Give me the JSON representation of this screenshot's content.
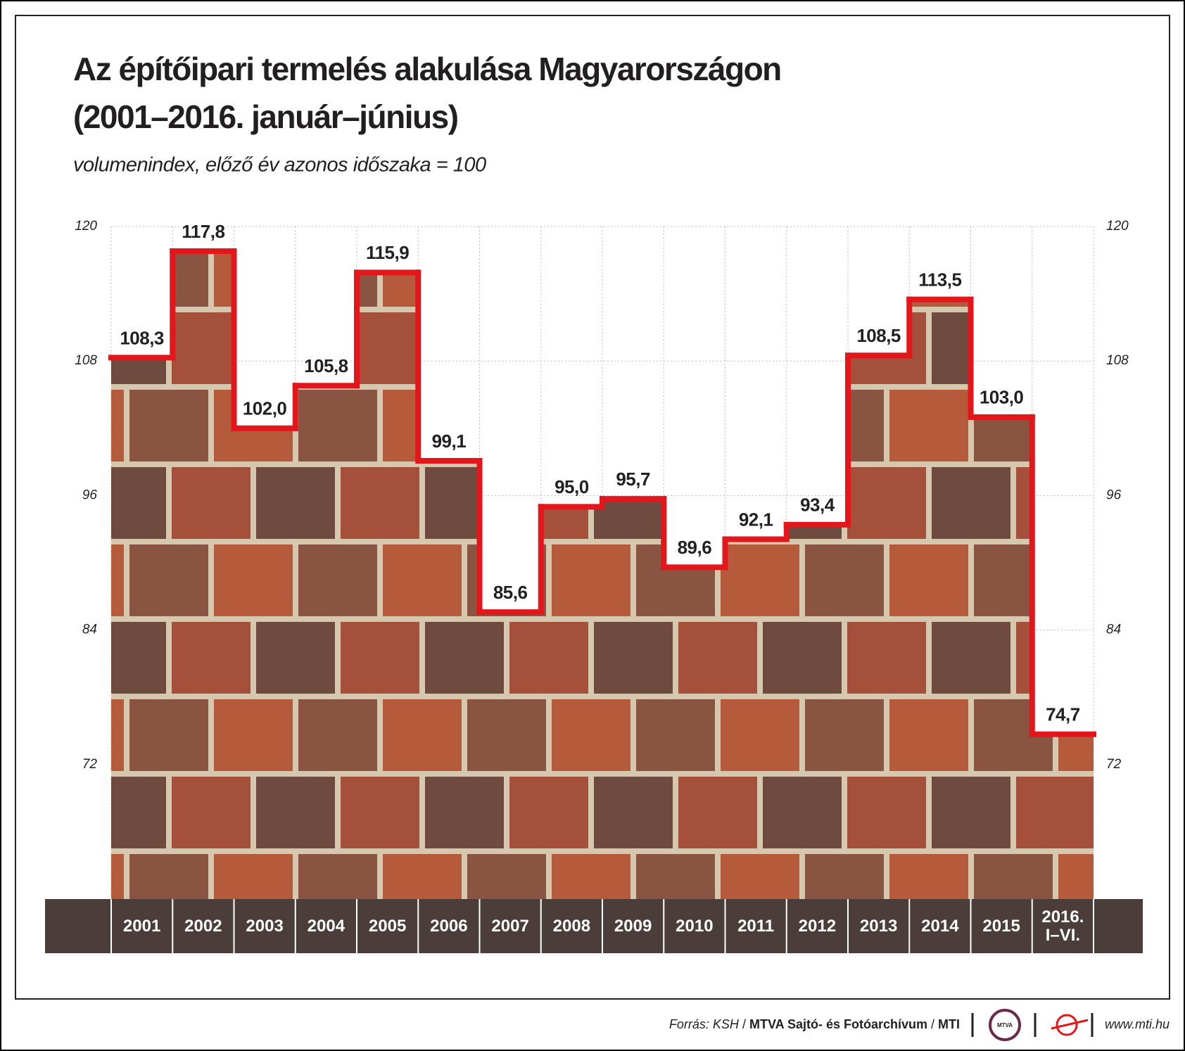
{
  "chart_data": {
    "type": "step",
    "title": [
      "Az építőipari termelés alakulása Magyarországon",
      "(2001–2016. január–június)"
    ],
    "subtitle": "volumenindex, előző év azonos időszaka = 100",
    "categories": [
      "2001",
      "2002",
      "2003",
      "2004",
      "2005",
      "2006",
      "2007",
      "2008",
      "2009",
      "2010",
      "2011",
      "2012",
      "2013",
      "2014",
      "2015",
      "2016. I–VI."
    ],
    "values": [
      108.3,
      117.8,
      102.0,
      105.8,
      115.9,
      99.1,
      85.6,
      95.0,
      95.7,
      89.6,
      92.1,
      93.4,
      108.5,
      113.5,
      103.0,
      74.7
    ],
    "value_labels": [
      "108,3",
      "117,8",
      "102,0",
      "105,8",
      "115,9",
      "99,1",
      "85,6",
      "95,0",
      "95,7",
      "89,6",
      "92,1",
      "93,4",
      "108,5",
      "113,5",
      "103,0",
      "74,7"
    ],
    "color": "#e3161b",
    "ylim": [
      60,
      120
    ],
    "yticks": [
      72,
      84,
      96,
      108,
      120
    ],
    "grid": true
  },
  "footer": {
    "source": [
      "Forrás: KSH",
      "/",
      "MTVA Sajtó- és Fotóarchívum",
      "/",
      "MTI"
    ],
    "logo": "MTVA",
    "url": "www.mti.hu"
  }
}
